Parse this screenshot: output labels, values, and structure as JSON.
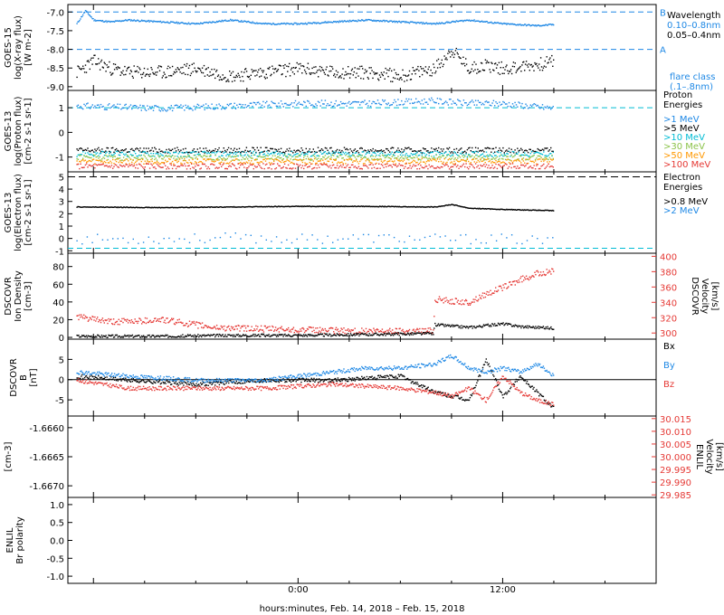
{
  "footer": {
    "xlabel": "hours:minutes, Feb. 14, 2018 – Feb. 15, 2018"
  },
  "x_axis": {
    "tick_labels": [
      "0:00",
      "12:00"
    ]
  },
  "panels": {
    "xray": {
      "ylabel_lines": [
        "GOES-15",
        "log(X-ray flux)",
        "[W m-2]"
      ],
      "yticks": [
        "-7.0",
        "-7.5",
        "-8.0",
        "-8.5",
        "-9.0"
      ],
      "level_labels": {
        "B": "B",
        "A": "A"
      },
      "legend_title": "Wavelength",
      "legend": [
        {
          "text": "0.10–0.8nm",
          "color": "#1e88e5"
        },
        {
          "text": "0.05–0.4nm",
          "color": "#000000"
        }
      ],
      "flare_label": [
        "flare class",
        "(.1–.8nm)"
      ]
    },
    "proton": {
      "ylabel_lines": [
        "GOES-13",
        "log(Proton flux)",
        "[cm-2 s-1 sr-1]"
      ],
      "yticks": [
        "1",
        "0",
        "-1"
      ],
      "legend_title": [
        "Proton",
        "Energies"
      ],
      "legend": [
        {
          "text": ">1 MeV",
          "color": "#1e88e5"
        },
        {
          "text": ">5 MeV",
          "color": "#000000"
        },
        {
          "text": ">10 MeV",
          "color": "#00bcd4"
        },
        {
          "text": ">30 MeV",
          "color": "#8bc34a"
        },
        {
          "text": ">50 MeV",
          "color": "#ff9800"
        },
        {
          "text": ">100 MeV",
          "color": "#e53935"
        }
      ]
    },
    "electron": {
      "ylabel_lines": [
        "GOES-13",
        "log(Electron flux)",
        "[cm-2 s-1 sr-1]"
      ],
      "yticks": [
        "5",
        "4",
        "3",
        "2",
        "1",
        "0",
        "-1"
      ],
      "legend_title": [
        "Electron",
        "Energies"
      ],
      "legend": [
        {
          "text": ">0.8 MeV",
          "color": "#000000"
        },
        {
          "text": ">2 MeV",
          "color": "#1e88e5"
        }
      ]
    },
    "density": {
      "ylabel_lines": [
        "DSCOVR",
        "Ion Density",
        "[cm-3]"
      ],
      "yticks": [
        "80",
        "60",
        "40",
        "20",
        "0"
      ],
      "right_label_lines": [
        "DSCOVR",
        "Velocity",
        "[km/s]"
      ],
      "right_ticks": [
        "400",
        "380",
        "360",
        "340",
        "320",
        "300"
      ]
    },
    "bfield": {
      "ylabel_lines": [
        "DSCOVR",
        "B",
        "[nT]"
      ],
      "yticks": [
        "5",
        "0",
        "-5"
      ],
      "legend": [
        {
          "text": "Bx",
          "color": "#000000"
        },
        {
          "text": "By",
          "color": "#1e88e5"
        },
        {
          "text": "Bz",
          "color": "#e53935"
        }
      ]
    },
    "enlil_density": {
      "ylabel_lines": [
        "[cm-3]"
      ],
      "yticks": [
        "-1.6660",
        "-1.6665",
        "-1.6670"
      ],
      "right_label_lines": [
        "ENLIL",
        "Velocity",
        "[km/s]"
      ],
      "right_ticks": [
        "30.015",
        "30.010",
        "30.005",
        "30.000",
        "29.995",
        "29.990",
        "29.985"
      ]
    },
    "enlil_polarity": {
      "ylabel_lines": [
        "ENLIL",
        "Br polarity"
      ],
      "yticks": [
        "1.0",
        "0.5",
        "0.0",
        "-0.5",
        "-1.0"
      ]
    }
  },
  "chart_data": [
    {
      "type": "scatter",
      "title": "GOES-15 X-ray flux",
      "ylabel": "log(X-ray flux) [W m-2]",
      "x_unit": "hours from 0:00 Feb. 14, 2018",
      "xlim": [
        -13.5,
        21
      ],
      "ylim": [
        -9.1,
        -6.8
      ],
      "reference_lines": [
        {
          "name": "B",
          "y": -7.0
        },
        {
          "name": "A",
          "y": -8.0
        }
      ],
      "series": [
        {
          "name": "0.10–0.8nm",
          "color": "#1e88e5",
          "x": [
            -13,
            -12.5,
            -12,
            -11,
            -10,
            -8,
            -6,
            -4,
            -2,
            0,
            2,
            4,
            6,
            8,
            10,
            12,
            14,
            15
          ],
          "y": [
            -7.3,
            -6.95,
            -7.2,
            -7.25,
            -7.2,
            -7.25,
            -7.3,
            -7.2,
            -7.3,
            -7.3,
            -7.25,
            -7.2,
            -7.25,
            -7.3,
            -7.2,
            -7.3,
            -7.35,
            -7.32
          ]
        },
        {
          "name": "0.05–0.4nm",
          "color": "#000000",
          "x": [
            -13,
            -12,
            -11,
            -10,
            -8,
            -6,
            -4,
            -2,
            0,
            2,
            4,
            6,
            8,
            9,
            10,
            11,
            12,
            13,
            14,
            15
          ],
          "y": [
            -8.6,
            -8.3,
            -8.5,
            -8.6,
            -8.6,
            -8.5,
            -8.7,
            -8.6,
            -8.5,
            -8.6,
            -8.6,
            -8.7,
            -8.5,
            -8.0,
            -8.5,
            -8.4,
            -8.5,
            -8.45,
            -8.4,
            -8.3
          ]
        }
      ]
    },
    {
      "type": "scatter",
      "title": "GOES-13 Proton flux",
      "ylabel": "log(Proton flux) [cm-2 s-1 sr-1]",
      "xlim": [
        -13.5,
        21
      ],
      "ylim": [
        -1.6,
        1.7
      ],
      "series": [
        {
          "name": ">1 MeV",
          "color": "#1e88e5",
          "x": [
            -13,
            -8,
            -4,
            0,
            4,
            8,
            10,
            12,
            15
          ],
          "y": [
            1.1,
            1.0,
            1.1,
            1.2,
            1.2,
            1.3,
            1.2,
            1.2,
            1.0
          ]
        },
        {
          "name": ">5 MeV",
          "color": "#000000",
          "x": [
            -13,
            15
          ],
          "y": [
            -0.7,
            -0.7
          ]
        },
        {
          "name": ">10 MeV",
          "color": "#00bcd4",
          "x": [
            -13,
            15
          ],
          "y": [
            -0.85,
            -0.85
          ]
        },
        {
          "name": ">30 MeV",
          "color": "#8bc34a",
          "x": [
            -13,
            15
          ],
          "y": [
            -1.0,
            -1.0
          ]
        },
        {
          "name": ">50 MeV",
          "color": "#ff9800",
          "x": [
            -13,
            15
          ],
          "y": [
            -1.15,
            -1.15
          ]
        },
        {
          "name": ">100 MeV",
          "color": "#e53935",
          "x": [
            -13,
            15
          ],
          "y": [
            -1.35,
            -1.35
          ]
        }
      ]
    },
    {
      "type": "scatter",
      "title": "GOES-13 Electron flux",
      "ylabel": "log(Electron flux) [cm-2 s-1 sr-1]",
      "xlim": [
        -13.5,
        21
      ],
      "ylim": [
        -1.2,
        5.4
      ],
      "series": [
        {
          "name": ">0.8 MeV",
          "color": "#000000",
          "x": [
            -13,
            -8,
            -4,
            0,
            4,
            8,
            9,
            10,
            12,
            15
          ],
          "y": [
            2.6,
            2.55,
            2.6,
            2.65,
            2.65,
            2.6,
            2.8,
            2.5,
            2.4,
            2.3
          ]
        },
        {
          "name": ">2 MeV",
          "color": "#1e88e5",
          "x": [
            -13,
            -8,
            -4,
            0,
            4,
            8,
            12,
            15
          ],
          "y": [
            0.0,
            0.0,
            0.1,
            0.0,
            0.1,
            0.0,
            0.0,
            -0.2
          ]
        }
      ]
    },
    {
      "type": "scatter",
      "title": "DSCOVR Ion Density / Velocity",
      "ylabel": "Ion Density [cm-3]",
      "y2label": "Velocity [km/s]",
      "xlim": [
        -13.5,
        21
      ],
      "ylim": [
        -2,
        95
      ],
      "y2lim": [
        292,
        404
      ],
      "series": [
        {
          "name": "Ion Density",
          "color": "#000000",
          "axis": "left",
          "x": [
            -13,
            -8,
            -4,
            0,
            4,
            7.9,
            8,
            10,
            12,
            13,
            14,
            15
          ],
          "y": [
            2,
            2,
            3,
            3,
            4,
            5,
            15,
            12,
            16,
            13,
            12,
            11
          ]
        },
        {
          "name": "Velocity",
          "color": "#e53935",
          "axis": "right",
          "x": [
            -13,
            -11,
            -8,
            -5,
            -2,
            0,
            4,
            7.9,
            8,
            10,
            11,
            12,
            13,
            14,
            15
          ],
          "y": [
            322,
            315,
            318,
            308,
            306,
            305,
            303,
            304,
            345,
            340,
            352,
            360,
            370,
            378,
            382
          ]
        }
      ]
    },
    {
      "type": "scatter",
      "title": "DSCOVR B",
      "ylabel": "B [nT]",
      "xlim": [
        -13.5,
        21
      ],
      "ylim": [
        -9,
        10
      ],
      "series": [
        {
          "name": "Bx",
          "color": "#000000",
          "x": [
            -13,
            -10,
            -6,
            -2,
            2,
            6,
            8,
            10,
            11,
            12,
            13,
            14,
            15
          ],
          "y": [
            1,
            0,
            -1,
            0,
            0,
            1,
            -3,
            -5,
            5,
            -4,
            1,
            -3,
            -7
          ]
        },
        {
          "name": "By",
          "color": "#1e88e5",
          "x": [
            -13,
            -10,
            -6,
            -2,
            2,
            4,
            6,
            8,
            9,
            10,
            11,
            12,
            13,
            14,
            15
          ],
          "y": [
            2,
            1,
            0,
            0,
            2,
            3,
            3,
            4,
            6,
            3,
            2,
            3,
            2,
            4,
            1
          ]
        },
        {
          "name": "Bz",
          "color": "#e53935",
          "x": [
            -13,
            -10,
            -6,
            -2,
            2,
            6,
            8,
            9,
            10,
            11,
            12,
            13,
            14,
            15
          ],
          "y": [
            0,
            -2,
            -2,
            -2,
            -1,
            -2,
            -3,
            -4,
            -2,
            -5,
            1,
            -3,
            -5,
            -6
          ]
        }
      ]
    }
  ]
}
